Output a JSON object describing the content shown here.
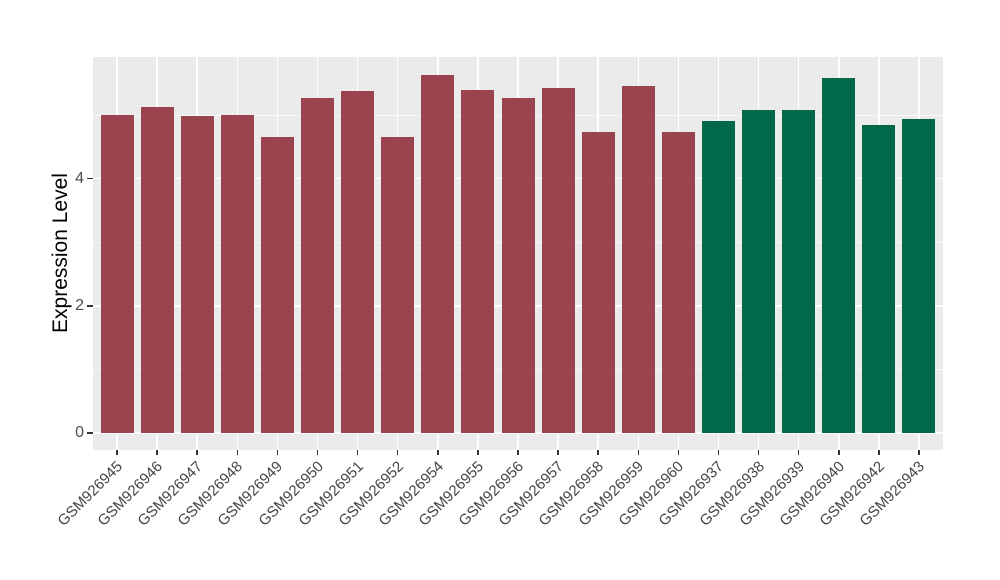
{
  "chart_data": {
    "type": "bar",
    "title": "",
    "xlabel": "",
    "ylabel": "Expression Level",
    "y_ticks": [
      0,
      2,
      4
    ],
    "y_minor_gridlines": [
      1,
      3,
      5
    ],
    "ylim": [
      0,
      5.9
    ],
    "legend_position": "none",
    "panel_background": "#EBEBEB",
    "gridline_color": "#FFFFFF",
    "group_colors": {
      "maroon": "#9A4450",
      "green": "#016849"
    },
    "bars": [
      {
        "label": "GSM926945",
        "value": 5.0,
        "group": "maroon"
      },
      {
        "label": "GSM926946",
        "value": 5.12,
        "group": "maroon"
      },
      {
        "label": "GSM926947",
        "value": 4.99,
        "group": "maroon"
      },
      {
        "label": "GSM926948",
        "value": 5.0,
        "group": "maroon"
      },
      {
        "label": "GSM926949",
        "value": 4.65,
        "group": "maroon"
      },
      {
        "label": "GSM926950",
        "value": 5.26,
        "group": "maroon"
      },
      {
        "label": "GSM926951",
        "value": 5.37,
        "group": "maroon"
      },
      {
        "label": "GSM926952",
        "value": 4.65,
        "group": "maroon"
      },
      {
        "label": "GSM926954",
        "value": 5.63,
        "group": "maroon"
      },
      {
        "label": "GSM926955",
        "value": 5.4,
        "group": "maroon"
      },
      {
        "label": "GSM926956",
        "value": 5.27,
        "group": "maroon"
      },
      {
        "label": "GSM926957",
        "value": 5.42,
        "group": "maroon"
      },
      {
        "label": "GSM926958",
        "value": 4.73,
        "group": "maroon"
      },
      {
        "label": "GSM926959",
        "value": 5.45,
        "group": "maroon"
      },
      {
        "label": "GSM926960",
        "value": 4.73,
        "group": "maroon"
      },
      {
        "label": "GSM926937",
        "value": 4.91,
        "group": "green"
      },
      {
        "label": "GSM926938",
        "value": 5.08,
        "group": "green"
      },
      {
        "label": "GSM926939",
        "value": 5.08,
        "group": "green"
      },
      {
        "label": "GSM926940",
        "value": 5.58,
        "group": "green"
      },
      {
        "label": "GSM926942",
        "value": 4.84,
        "group": "green"
      },
      {
        "label": "GSM926943",
        "value": 4.94,
        "group": "green"
      }
    ]
  }
}
